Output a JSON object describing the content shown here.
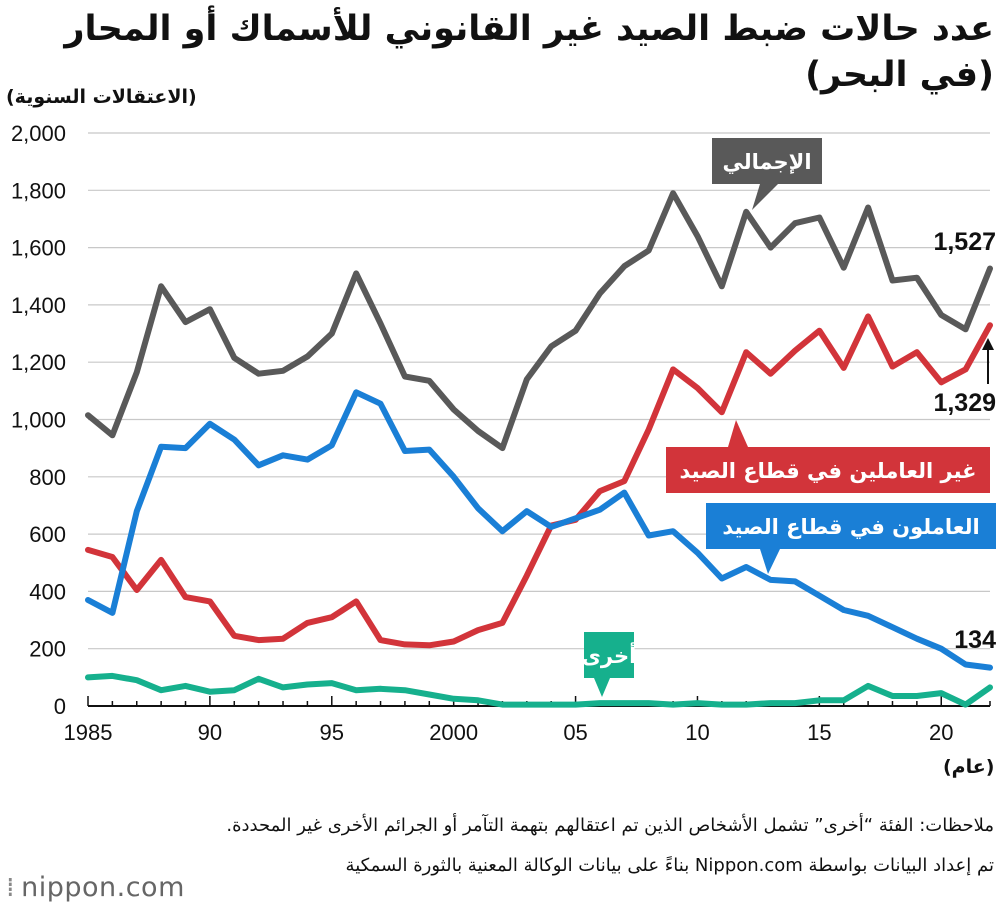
{
  "title": "عدد حالات ضبط الصيد غير القانوني للأسماك أو المحار (في البحر)",
  "y_unit": "(الاعتقالات السنوية)",
  "x_unit": "(عام)",
  "notes": {
    "note1": "ملاحظات: الفئة “أخرى” تشمل الأشخاص الذين تم اعتقالهم بتهمة التآمر أو الجرائم الأخرى غير المحددة.",
    "note2": "تم إعداد البيانات بواسطة Nippon.com بناءً على بيانات الوكالة المعنية بالثورة السمكية"
  },
  "logo": {
    "text": "nippon.com",
    "icon": "nippon-logo-icon"
  },
  "chart_data": {
    "type": "line",
    "x": [
      1985,
      1986,
      1987,
      1988,
      1989,
      1990,
      1991,
      1992,
      1993,
      1994,
      1995,
      1996,
      1997,
      1998,
      1999,
      2000,
      2001,
      2002,
      2003,
      2004,
      2005,
      2006,
      2007,
      2008,
      2009,
      2010,
      2011,
      2012,
      2013,
      2014,
      2015,
      2016,
      2017,
      2018,
      2019,
      2020,
      2021,
      2022
    ],
    "xticks": [
      1985,
      1990,
      1995,
      2000,
      2005,
      2010,
      2015,
      2020
    ],
    "xtick_labels": [
      "1985",
      "90",
      "95",
      "2000",
      "05",
      "10",
      "15",
      "20"
    ],
    "ylim": [
      0,
      2000
    ],
    "yticks": [
      0,
      200,
      400,
      600,
      800,
      1000,
      1200,
      1400,
      1600,
      1800,
      2000
    ],
    "ytick_labels": [
      "0",
      "200",
      "400",
      "600",
      "800",
      "1,000",
      "1,200",
      "1,400",
      "1,600",
      "1,800",
      "2,000"
    ],
    "grid": true,
    "series": [
      {
        "name": "الإجمالي",
        "color": "#595959",
        "values": [
          1015,
          945,
          1165,
          1465,
          1340,
          1385,
          1215,
          1160,
          1170,
          1220,
          1300,
          1510,
          1335,
          1150,
          1135,
          1035,
          960,
          900,
          1140,
          1255,
          1310,
          1440,
          1535,
          1590,
          1790,
          1640,
          1465,
          1725,
          1600,
          1685,
          1705,
          1530,
          1740,
          1485,
          1495,
          1365,
          1315,
          1527
        ]
      },
      {
        "name": "غير العاملين في قطاع الصيد",
        "color": "#d2343a",
        "values": [
          545,
          520,
          405,
          510,
          380,
          365,
          245,
          230,
          235,
          290,
          310,
          365,
          230,
          215,
          212,
          225,
          265,
          290,
          455,
          630,
          650,
          750,
          785,
          965,
          1175,
          1110,
          1025,
          1235,
          1160,
          1240,
          1310,
          1180,
          1360,
          1185,
          1235,
          1130,
          1175,
          1329
        ]
      },
      {
        "name": "العاملون في قطاع الصيد",
        "color": "#1a7fd6",
        "values": [
          370,
          325,
          680,
          905,
          900,
          985,
          930,
          840,
          875,
          860,
          910,
          1095,
          1055,
          890,
          895,
          800,
          690,
          610,
          680,
          625,
          655,
          685,
          745,
          595,
          610,
          535,
          445,
          485,
          440,
          435,
          385,
          335,
          315,
          275,
          235,
          200,
          145,
          134
        ]
      },
      {
        "name": "أخرى",
        "color": "#16b08d",
        "values": [
          100,
          105,
          90,
          55,
          70,
          50,
          55,
          95,
          65,
          75,
          80,
          55,
          60,
          55,
          40,
          25,
          20,
          5,
          5,
          5,
          5,
          10,
          10,
          10,
          5,
          10,
          5,
          5,
          10,
          10,
          20,
          20,
          70,
          35,
          35,
          45,
          5,
          65
        ]
      }
    ],
    "end_labels": {
      "total": "1,527",
      "non_fishery": "1,329",
      "fishery": "134"
    }
  }
}
